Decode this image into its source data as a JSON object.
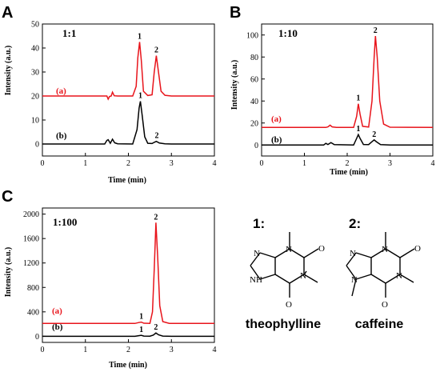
{
  "panels": [
    {
      "letter": "A",
      "ratio": "1:1",
      "ylabel": "Intensity (a.u.)",
      "xlabel": "Time (min)"
    },
    {
      "letter": "B",
      "ratio": "1:10",
      "ylabel": "Intensity (a.u.)",
      "xlabel": "Time (min)"
    },
    {
      "letter": "C",
      "ratio": "1:100",
      "ylabel": "Intensity (a.u.)",
      "xlabel": "Time (min)"
    }
  ],
  "structures": {
    "theophylline": {
      "index": "1:",
      "name": "theophylline",
      "atoms": {
        "O": "O",
        "N": "N",
        "NH": "NH"
      }
    },
    "caffeine": {
      "index": "2:",
      "name": "caffeine",
      "atoms": {
        "O": "O",
        "N": "N"
      }
    }
  },
  "colors": {
    "red": "#e8141b",
    "black": "#000000"
  },
  "chart_data": [
    {
      "type": "line",
      "panel": "A",
      "xlim": [
        0,
        4
      ],
      "ylim": [
        -5,
        50
      ],
      "xticks": [
        0,
        1,
        2,
        3,
        4
      ],
      "yticks": [
        0,
        10,
        20,
        30,
        40,
        50
      ],
      "series": [
        {
          "name": "(a)",
          "color": "#e8141b",
          "baseline": 20,
          "points": [
            [
              0,
              20
            ],
            [
              1.5,
              20
            ],
            [
              1.53,
              18.7
            ],
            [
              1.56,
              19.8
            ],
            [
              1.6,
              20
            ],
            [
              1.63,
              21.6
            ],
            [
              1.67,
              20.1
            ],
            [
              1.75,
              20
            ],
            [
              2.1,
              20
            ],
            [
              2.18,
              24
            ],
            [
              2.22,
              36
            ],
            [
              2.26,
              42.5
            ],
            [
              2.3,
              35
            ],
            [
              2.35,
              22
            ],
            [
              2.45,
              20.2
            ],
            [
              2.55,
              20.5
            ],
            [
              2.6,
              30
            ],
            [
              2.65,
              36.8
            ],
            [
              2.7,
              30
            ],
            [
              2.76,
              22
            ],
            [
              2.85,
              20.3
            ],
            [
              3.0,
              20
            ],
            [
              4.0,
              20
            ]
          ],
          "peak_labels": [
            {
              "text": "1",
              "x": 2.26,
              "y": 42.5
            },
            {
              "text": "2",
              "x": 2.65,
              "y": 36.8
            }
          ]
        },
        {
          "name": "(b)",
          "color": "#000000",
          "baseline": 0,
          "points": [
            [
              0,
              0
            ],
            [
              1.45,
              0
            ],
            [
              1.5,
              1.5
            ],
            [
              1.53,
              1.8
            ],
            [
              1.58,
              0.3
            ],
            [
              1.63,
              2.0
            ],
            [
              1.68,
              0.5
            ],
            [
              1.75,
              0.1
            ],
            [
              2.1,
              0
            ],
            [
              2.2,
              6
            ],
            [
              2.25,
              15
            ],
            [
              2.28,
              17.8
            ],
            [
              2.32,
              12
            ],
            [
              2.38,
              3
            ],
            [
              2.45,
              0.3
            ],
            [
              2.55,
              0.2
            ],
            [
              2.6,
              0.7
            ],
            [
              2.65,
              1.1
            ],
            [
              2.72,
              0.4
            ],
            [
              2.85,
              0.1
            ],
            [
              3.0,
              0
            ],
            [
              4.0,
              0
            ]
          ],
          "peak_labels": [
            {
              "text": "1",
              "x": 2.28,
              "y": 17.8
            },
            {
              "text": "2",
              "x": 2.66,
              "y": 1.1
            }
          ]
        }
      ]
    },
    {
      "type": "line",
      "panel": "B",
      "xlim": [
        0,
        4
      ],
      "ylim": [
        -10,
        110
      ],
      "xticks": [
        0,
        1,
        2,
        3,
        4
      ],
      "yticks": [
        0,
        20,
        40,
        60,
        80,
        100
      ],
      "series": [
        {
          "name": "(a)",
          "color": "#e8141b",
          "baseline": 16,
          "points": [
            [
              0,
              16
            ],
            [
              1.5,
              16
            ],
            [
              1.55,
              16.5
            ],
            [
              1.6,
              18
            ],
            [
              1.65,
              16.5
            ],
            [
              1.75,
              16
            ],
            [
              2.15,
              16
            ],
            [
              2.22,
              26
            ],
            [
              2.26,
              37.5
            ],
            [
              2.3,
              28
            ],
            [
              2.36,
              17
            ],
            [
              2.5,
              16.3
            ],
            [
              2.58,
              40
            ],
            [
              2.63,
              80
            ],
            [
              2.66,
              99
            ],
            [
              2.7,
              80
            ],
            [
              2.76,
              40
            ],
            [
              2.85,
              19
            ],
            [
              3.0,
              16.2
            ],
            [
              4.0,
              16
            ]
          ],
          "peak_labels": [
            {
              "text": "1",
              "x": 2.26,
              "y": 37.5
            },
            {
              "text": "2",
              "x": 2.66,
              "y": 99
            }
          ]
        },
        {
          "name": "(b)",
          "color": "#000000",
          "baseline": 0,
          "points": [
            [
              0,
              0
            ],
            [
              1.45,
              0
            ],
            [
              1.5,
              1.5
            ],
            [
              1.55,
              0.5
            ],
            [
              1.62,
              2.2
            ],
            [
              1.7,
              0.3
            ],
            [
              2.15,
              0
            ],
            [
              2.22,
              6
            ],
            [
              2.26,
              9.5
            ],
            [
              2.3,
              6
            ],
            [
              2.38,
              0.5
            ],
            [
              2.5,
              0.4
            ],
            [
              2.58,
              3
            ],
            [
              2.63,
              4.6
            ],
            [
              2.68,
              3
            ],
            [
              2.78,
              0.3
            ],
            [
              3.0,
              0
            ],
            [
              4.0,
              0
            ]
          ],
          "peak_labels": [
            {
              "text": "1",
              "x": 2.26,
              "y": 9.5
            },
            {
              "text": "2",
              "x": 2.63,
              "y": 4.6
            }
          ]
        }
      ]
    },
    {
      "type": "line",
      "panel": "C",
      "xlim": [
        0,
        4
      ],
      "ylim": [
        -100,
        2100
      ],
      "xticks": [
        0,
        1,
        2,
        3,
        4
      ],
      "yticks": [
        0,
        400,
        800,
        1200,
        1600,
        2000
      ],
      "series": [
        {
          "name": "(a)",
          "color": "#e8141b",
          "baseline": 210,
          "points": [
            [
              0,
              210
            ],
            [
              2.15,
              210
            ],
            [
              2.24,
              225
            ],
            [
              2.3,
              232
            ],
            [
              2.36,
              214
            ],
            [
              2.5,
              212
            ],
            [
              2.56,
              400
            ],
            [
              2.6,
              1100
            ],
            [
              2.64,
              1860
            ],
            [
              2.68,
              1300
            ],
            [
              2.73,
              500
            ],
            [
              2.8,
              240
            ],
            [
              2.95,
              212
            ],
            [
              4.0,
              210
            ]
          ],
          "peak_labels": [
            {
              "text": "1",
              "x": 2.3,
              "y": 232
            },
            {
              "text": "2",
              "x": 2.64,
              "y": 1860
            }
          ]
        },
        {
          "name": "(b)",
          "color": "#000000",
          "baseline": 0,
          "points": [
            [
              0,
              0
            ],
            [
              2.15,
              0
            ],
            [
              2.24,
              10
            ],
            [
              2.3,
              16
            ],
            [
              2.36,
              4
            ],
            [
              2.5,
              2
            ],
            [
              2.58,
              20
            ],
            [
              2.64,
              55
            ],
            [
              2.7,
              25
            ],
            [
              2.8,
              3
            ],
            [
              3.0,
              0
            ],
            [
              4.0,
              0
            ]
          ],
          "peak_labels": [
            {
              "text": "1",
              "x": 2.3,
              "y": 16
            },
            {
              "text": "2",
              "x": 2.64,
              "y": 55
            }
          ]
        }
      ]
    }
  ]
}
